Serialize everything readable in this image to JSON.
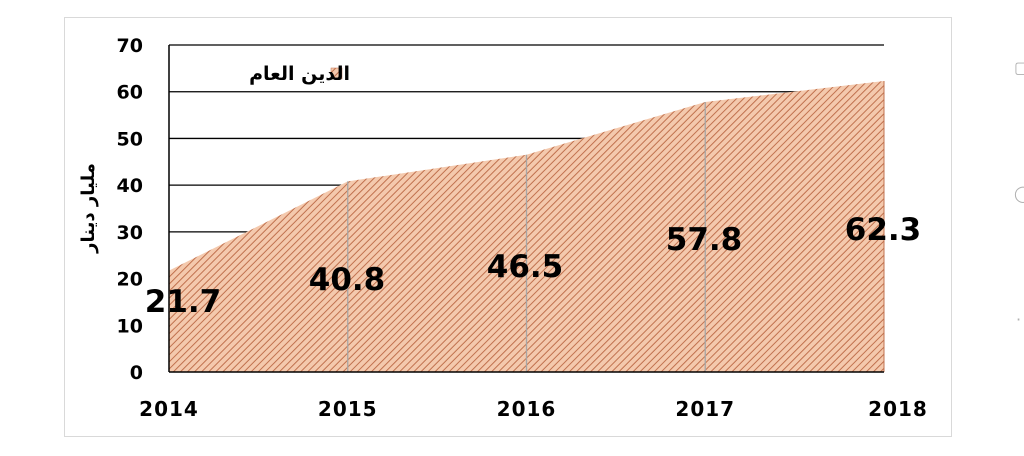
{
  "chart_data": {
    "type": "area",
    "categories": [
      "2014",
      "2015",
      "2016",
      "2017",
      "2018"
    ],
    "series": [
      {
        "name": "الدين العام",
        "values": [
          21.7,
          40.8,
          46.5,
          57.8,
          62.3
        ]
      }
    ],
    "data_labels": [
      "21.7",
      "40.8",
      "46.5",
      "57.8",
      "62.3"
    ],
    "title": "",
    "xlabel": "",
    "ylabel": "مليار دينار",
    "ylim": [
      0,
      70
    ],
    "yticks": [
      "0",
      "10",
      "20",
      "30",
      "40",
      "50",
      "60",
      "70"
    ],
    "grid": true,
    "legend_position": "top-left",
    "colors": {
      "fill": "#f4c9ad",
      "hatch": "#c0714e",
      "edge": "#c0714e",
      "grid": "#000000",
      "vgrid": "#a6a6a6"
    }
  }
}
